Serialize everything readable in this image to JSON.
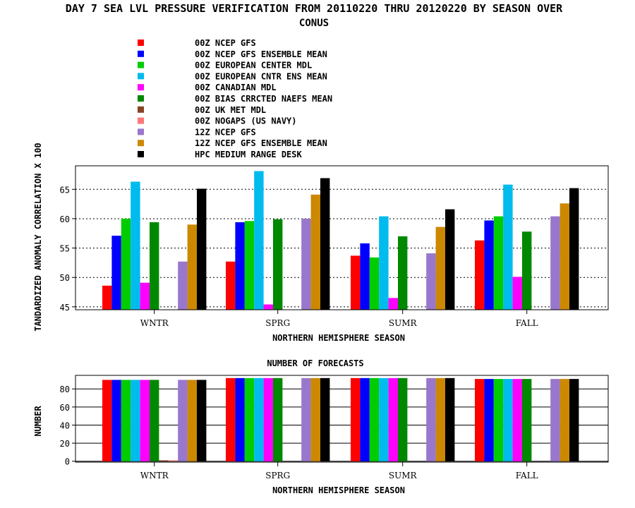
{
  "title_line1": "DAY 7 SEA LVL PRESSURE VERIFICATION FROM 20110220 THRU 20120220 BY SEASON OVER",
  "title_line2": "CONUS",
  "legend": [
    {
      "label": "00Z NCEP GFS",
      "color": "#ff0000"
    },
    {
      "label": "00Z NCEP GFS ENSEMBLE MEAN",
      "color": "#0000ff"
    },
    {
      "label": "00Z EUROPEAN CENTER MDL",
      "color": "#00cc00"
    },
    {
      "label": "00Z EUROPEAN CNTR ENS MEAN",
      "color": "#00bbee"
    },
    {
      "label": "00Z CANADIAN MDL",
      "color": "#ff00ff"
    },
    {
      "label": "00Z BIAS CRRCTED NAEFS MEAN",
      "color": "#008800"
    },
    {
      "label": "00Z UK MET MDL",
      "color": "#884422"
    },
    {
      "label": "00Z NOGAPS (US NAVY)",
      "color": "#ff7777"
    },
    {
      "label": "12Z NCEP GFS",
      "color": "#9977cc"
    },
    {
      "label": "12Z NCEP GFS ENSEMBLE MEAN",
      "color": "#cc8800"
    },
    {
      "label": "HPC MEDIUM RANGE DESK",
      "color": "#000000"
    }
  ],
  "chart_data": [
    {
      "type": "bar",
      "ylabel": "TANDARDIZED ANOMALY CORRELATION X 100",
      "xlabel": "NORTHERN HEMISPHERE SEASON",
      "categories": [
        "WNTR",
        "SPRG",
        "SUMR",
        "FALL"
      ],
      "ylim": [
        44.5,
        69
      ],
      "yticks": [
        45,
        50,
        55,
        60,
        65
      ],
      "ytick_labels": [
        "45",
        "50",
        "55",
        "60",
        "65"
      ],
      "grid": "dotted-horizontal",
      "series": [
        {
          "name": "00Z NCEP GFS",
          "values": [
            48.6,
            52.7,
            53.7,
            56.3
          ]
        },
        {
          "name": "00Z NCEP GFS ENSEMBLE MEAN",
          "values": [
            57.1,
            59.4,
            55.8,
            59.7
          ]
        },
        {
          "name": "00Z EUROPEAN CENTER MDL",
          "values": [
            60.0,
            59.6,
            53.4,
            60.4
          ]
        },
        {
          "name": "00Z EUROPEAN CNTR ENS MEAN",
          "values": [
            66.3,
            68.1,
            60.4,
            65.8
          ]
        },
        {
          "name": "00Z CANADIAN MDL",
          "values": [
            49.1,
            45.4,
            46.5,
            50.1
          ]
        },
        {
          "name": "00Z BIAS CRRCTED NAEFS MEAN",
          "values": [
            59.4,
            59.9,
            57.0,
            57.8
          ]
        },
        {
          "name": "00Z UK MET MDL",
          "values": [
            null,
            null,
            null,
            null
          ]
        },
        {
          "name": "00Z NOGAPS (US NAVY)",
          "values": [
            null,
            null,
            null,
            null
          ]
        },
        {
          "name": "12Z NCEP GFS",
          "values": [
            52.7,
            60.0,
            54.1,
            60.4
          ]
        },
        {
          "name": "12Z NCEP GFS ENSEMBLE MEAN",
          "values": [
            59.0,
            64.1,
            58.6,
            62.6
          ]
        },
        {
          "name": "HPC MEDIUM RANGE DESK",
          "values": [
            65.1,
            66.9,
            61.6,
            65.2
          ]
        }
      ]
    },
    {
      "type": "bar",
      "title": "NUMBER OF FORECASTS",
      "ylabel": "NUMBER",
      "xlabel": "NORTHERN HEMISPHERE SEASON",
      "categories": [
        "WNTR",
        "SPRG",
        "SUMR",
        "FALL"
      ],
      "ylim": [
        -1,
        95
      ],
      "yticks": [
        0,
        20,
        40,
        60,
        80
      ],
      "ytick_labels": [
        "0",
        "20",
        "40",
        "60",
        "80"
      ],
      "grid": "horizontal",
      "series": [
        {
          "name": "00Z NCEP GFS",
          "values": [
            90,
            92,
            92,
            91
          ]
        },
        {
          "name": "00Z NCEP GFS ENSEMBLE MEAN",
          "values": [
            90,
            92,
            92,
            91
          ]
        },
        {
          "name": "00Z EUROPEAN CENTER MDL",
          "values": [
            90,
            92,
            92,
            91
          ]
        },
        {
          "name": "00Z EUROPEAN CNTR ENS MEAN",
          "values": [
            90,
            92,
            92,
            91
          ]
        },
        {
          "name": "00Z CANADIAN MDL",
          "values": [
            90,
            92,
            92,
            91
          ]
        },
        {
          "name": "00Z BIAS CRRCTED NAEFS MEAN",
          "values": [
            90,
            92,
            92,
            91
          ]
        },
        {
          "name": "00Z UK MET MDL",
          "values": [
            1,
            0,
            0,
            0
          ]
        },
        {
          "name": "00Z NOGAPS (US NAVY)",
          "values": [
            1,
            0,
            0,
            0
          ]
        },
        {
          "name": "12Z NCEP GFS",
          "values": [
            90,
            92,
            92,
            91
          ]
        },
        {
          "name": "12Z NCEP GFS ENSEMBLE MEAN",
          "values": [
            90,
            92,
            92,
            91
          ]
        },
        {
          "name": "HPC MEDIUM RANGE DESK",
          "values": [
            90,
            92,
            92,
            91
          ]
        }
      ]
    }
  ]
}
